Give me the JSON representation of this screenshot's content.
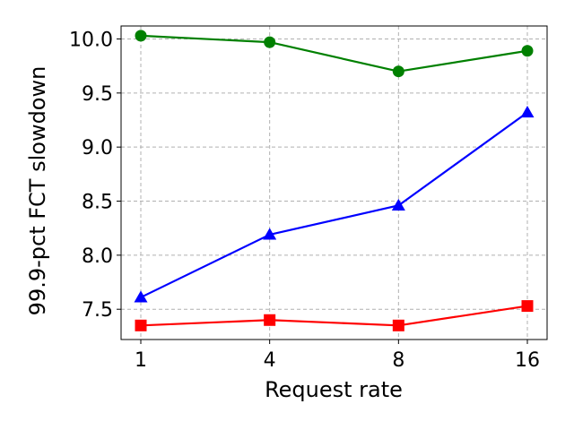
{
  "chart_data": {
    "type": "line",
    "title": "",
    "xlabel": "Request rate",
    "ylabel": "99.9-pct FCT slowdown",
    "categories": [
      "1",
      "4",
      "8",
      "16"
    ],
    "ylim": [
      7.22,
      10.12
    ],
    "y_ticks": [
      "7.5",
      "8.0",
      "8.5",
      "9.0",
      "9.5",
      "10.0"
    ],
    "y_tick_values": [
      7.5,
      8.0,
      8.5,
      9.0,
      9.5,
      10.0
    ],
    "grid": true,
    "legend": "none",
    "series": [
      {
        "color": "#008000",
        "marker": "circle",
        "values": [
          10.03,
          9.97,
          9.7,
          9.89
        ]
      },
      {
        "color": "#0000ff",
        "marker": "triangle",
        "values": [
          7.61,
          8.19,
          8.46,
          9.32
        ]
      },
      {
        "color": "#ff0000",
        "marker": "square",
        "values": [
          7.35,
          7.4,
          7.35,
          7.53
        ]
      }
    ]
  }
}
